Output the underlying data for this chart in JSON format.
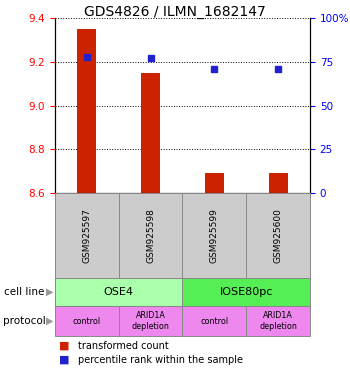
{
  "title": "GDS4826 / ILMN_1682147",
  "samples": [
    "GSM925597",
    "GSM925598",
    "GSM925599",
    "GSM925600"
  ],
  "bar_values": [
    9.35,
    9.15,
    8.69,
    8.69
  ],
  "dot_values": [
    78,
    77,
    71,
    71
  ],
  "ylim_left": [
    8.6,
    9.4
  ],
  "ylim_right": [
    0,
    100
  ],
  "yticks_left": [
    8.6,
    8.8,
    9.0,
    9.2,
    9.4
  ],
  "yticks_right": [
    0,
    25,
    50,
    75,
    100
  ],
  "ytick_labels_right": [
    "0",
    "25",
    "50",
    "75",
    "100%"
  ],
  "bar_color": "#CC2200",
  "dot_color": "#2222CC",
  "bar_bottom": 8.6,
  "cell_line_labels": [
    "OSE4",
    "IOSE80pc"
  ],
  "cell_line_colors": [
    "#AAFFAA",
    "#55EE55"
  ],
  "protocol_labels": [
    "control",
    "ARID1A\ndepletion",
    "control",
    "ARID1A\ndepletion"
  ],
  "protocol_color": "#EE88EE",
  "sample_box_color": "#CCCCCC",
  "legend_red_label": "transformed count",
  "legend_blue_label": "percentile rank within the sample",
  "cell_line_row_label": "cell line",
  "protocol_row_label": "protocol"
}
